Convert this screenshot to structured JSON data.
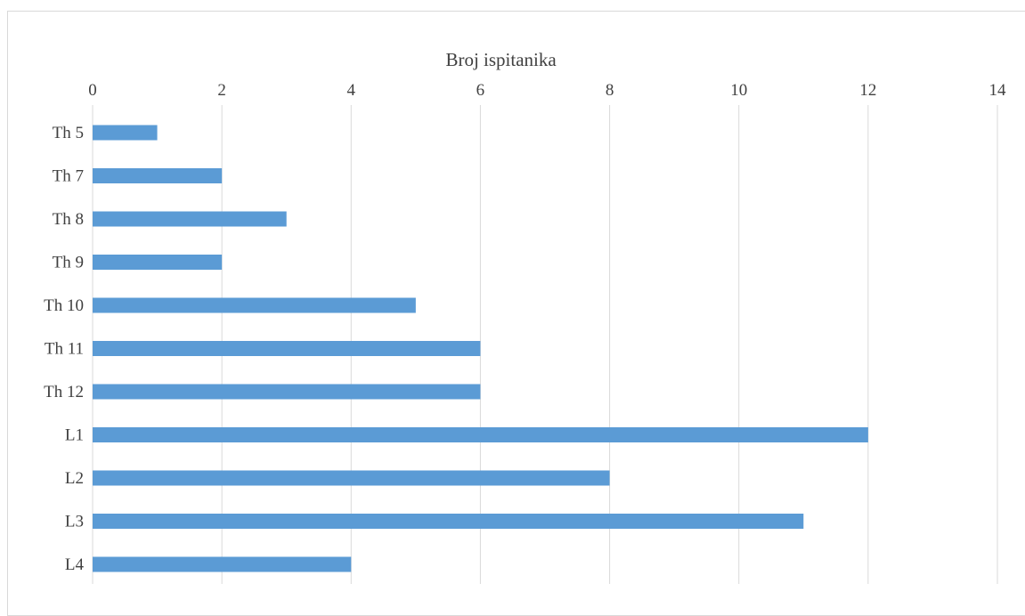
{
  "chart_data": {
    "type": "bar",
    "orientation": "horizontal",
    "title": "",
    "xlabel": "Broj ispitanika",
    "ylabel": "",
    "categories": [
      "Th 5",
      "Th 7",
      "Th 8",
      "Th 9",
      "Th 10",
      "Th 11",
      "Th 12",
      "L1",
      "L2",
      "L3",
      "L4"
    ],
    "values": [
      1,
      2,
      3,
      2,
      5,
      6,
      6,
      12,
      8,
      11,
      4
    ],
    "xlim": [
      0,
      14
    ],
    "xticks": [
      0,
      2,
      4,
      6,
      8,
      10,
      12,
      14
    ],
    "x_axis_position": "top",
    "grid": true,
    "legend": "none",
    "bar_color": "#5b9bd5",
    "gridline_color": "#d9d9d9",
    "text_color": "#404040"
  }
}
